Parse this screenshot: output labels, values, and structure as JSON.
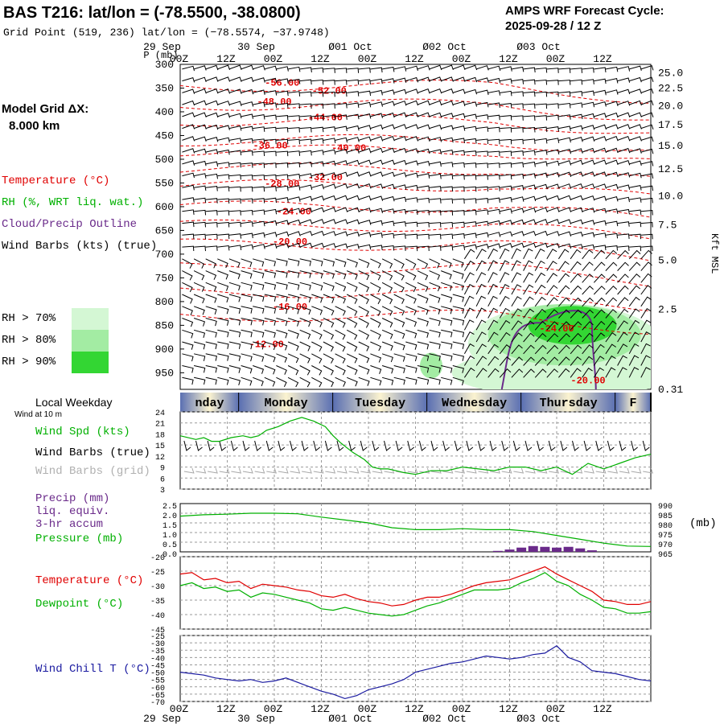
{
  "header": {
    "title": "BAS T216:  lat/lon = (-78.5500, -38.0800)",
    "grid_point": "Grid Point (519, 236) lat/lon = (−78.5574, −37.9748)",
    "cycle_line1": "AMPS WRF Forecast Cycle:",
    "cycle_line2": "2025-09-28 / 12  Z",
    "model_grid_label": "Model Grid ΔX:",
    "model_grid_value": "8.000 km"
  },
  "time_axis": {
    "top_dates": [
      "29 Sep",
      "30 Sep",
      "Ø01 Oct",
      "Ø02 Oct",
      "Ø03 Oct"
    ],
    "bottom_dates": [
      "29 Sep",
      "30 Sep",
      "Ø01 Oct",
      "Ø02 Oct",
      "Ø03 Oct"
    ],
    "hours": [
      "00Z",
      "12Z",
      "00Z",
      "12Z",
      "00Z",
      "12Z",
      "00Z",
      "12Z",
      "00Z",
      "12Z"
    ],
    "p_label": "P (mb)"
  },
  "legend": {
    "temperature": "Temperature (°C)",
    "rh": "RH (%, WRT liq. wat.)",
    "cloud": "Cloud/Precip Outline",
    "wind_barbs": "Wind Barbs (kts) (true)",
    "rh70": "RH > 70%",
    "rh80": "RH > 80%",
    "rh90": "RH > 90%",
    "rh_colors": [
      "#d4f7d4",
      "#a3eca3",
      "#33d633"
    ]
  },
  "weekday": {
    "title": "Local Weekday",
    "days": [
      "nday",
      "Monday",
      "Tuesday",
      "Wednesday",
      "Thursday",
      "F"
    ]
  },
  "colors": {
    "temperature": "#e00000",
    "rh": "#00b000",
    "cloud": "#6a2a8a",
    "wind_chill": "#1a1aa0",
    "wind_grid": "#a8a8a8",
    "pressure": "#00b000"
  },
  "chart_data": [
    {
      "type": "contour",
      "name": "cross-section",
      "yaxis_left": {
        "label": "P (mb)",
        "ticks": [
          300,
          350,
          400,
          450,
          500,
          550,
          600,
          650,
          700,
          750,
          800,
          850,
          900,
          950
        ],
        "range": [
          300,
          985
        ]
      },
      "yaxis_right": {
        "label": "Kft MSL",
        "ticks": [
          "25.0",
          "22.5",
          "20.0",
          "17.5",
          "15.0",
          "12.5",
          "10.0",
          "7.5",
          "5.0",
          "2.5",
          "0.31"
        ],
        "tick_pressures": [
          318,
          350,
          387,
          427,
          471,
          520,
          577,
          638,
          713,
          816,
          985
        ]
      },
      "xaxis": {
        "hours": [
          0,
          120
        ],
        "ticks_hours": [
          12,
          24,
          36,
          48,
          60,
          72,
          84,
          96,
          108,
          120
        ]
      },
      "temperature_labels": [
        {
          "text": "-56.00",
          "hour": 26,
          "p": 345
        },
        {
          "text": "-52.00",
          "hour": 38,
          "p": 362
        },
        {
          "text": "-48.00",
          "hour": 24,
          "p": 385
        },
        {
          "text": "-44.00",
          "hour": 37,
          "p": 418
        },
        {
          "text": "-36.00",
          "hour": 23,
          "p": 477
        },
        {
          "text": "-40.00",
          "hour": 43,
          "p": 482
        },
        {
          "text": "-28.00",
          "hour": 26,
          "p": 558
        },
        {
          "text": "-32.00",
          "hour": 37,
          "p": 544
        },
        {
          "text": "-24.00",
          "hour": 29,
          "p": 616
        },
        {
          "text": "-20.00",
          "hour": 28,
          "p": 680
        },
        {
          "text": "-16.00",
          "hour": 28,
          "p": 817
        },
        {
          "text": "-12.00",
          "hour": 22,
          "p": 896
        },
        {
          "text": "-24.00",
          "hour": 96,
          "p": 863
        },
        {
          "text": "-20.00",
          "hour": 104,
          "p": 972
        }
      ]
    },
    {
      "type": "line",
      "name": "wind-speed",
      "ylabel": "Wind Spd (kts)",
      "ylim": [
        3,
        24
      ],
      "yticks": [
        24,
        21,
        18,
        15,
        12,
        9,
        6,
        3
      ],
      "x": [
        0,
        4,
        6,
        8,
        10,
        13,
        16,
        18,
        20,
        22,
        25,
        28,
        31,
        34,
        37,
        39,
        41,
        44,
        47,
        49,
        51,
        53,
        55,
        57,
        60,
        64,
        68,
        72,
        76,
        80,
        84,
        88,
        92,
        96,
        100,
        104,
        108,
        112,
        116,
        120
      ],
      "values": [
        17.5,
        16.5,
        17,
        16,
        16,
        17,
        17.5,
        17,
        17.5,
        19,
        20,
        21.5,
        22.5,
        21.5,
        20,
        17.5,
        15.5,
        13,
        11,
        9,
        8.5,
        8.5,
        8,
        7.5,
        7,
        8,
        8,
        9,
        8.5,
        8,
        9,
        9,
        8,
        9,
        7,
        10,
        8.5,
        10,
        11.5,
        12.5
      ],
      "labels": [
        "Wind Spd (kts)",
        "Wind Barbs (true)",
        "Wind Barbs (grid)"
      ],
      "wind_label": "Wind at 10 m"
    },
    {
      "type": "line",
      "name": "precip-pressure",
      "labels": [
        "Precip (mm)",
        "liq. equiv.",
        "3-hr accum",
        "Pressure (mb)"
      ],
      "unit_label": "(mb)",
      "yticks_left": [
        "2.5",
        "2.0",
        "1.5",
        "1.0",
        "0.5",
        "0.0"
      ],
      "yticks_right": [
        "990",
        "985",
        "980",
        "975",
        "970",
        "965"
      ],
      "ylim_left": [
        0,
        2.5
      ],
      "ylim_right": [
        965,
        990
      ],
      "pressure": {
        "x": [
          0,
          6,
          12,
          18,
          24,
          30,
          36,
          42,
          48,
          54,
          60,
          66,
          72,
          78,
          84,
          90,
          96,
          102,
          108,
          114,
          120
        ],
        "values": [
          983.5,
          984.2,
          984.5,
          985,
          985,
          984.7,
          983,
          981.5,
          980,
          977.5,
          976.5,
          976.5,
          977,
          976.5,
          976.5,
          975.5,
          973.5,
          971.5,
          969.5,
          968,
          967.8
        ]
      },
      "precip": {
        "x": [
          81,
          84,
          87,
          90,
          93,
          96,
          99,
          102,
          105
        ],
        "values": [
          0.05,
          0.12,
          0.22,
          0.3,
          0.26,
          0.22,
          0.26,
          0.18,
          0.08
        ]
      }
    },
    {
      "type": "line",
      "name": "temperature-dewpoint",
      "labels": [
        "Temperature (°C)",
        "Dewpoint (°C)"
      ],
      "ylim": [
        -45,
        -20
      ],
      "yticks": [
        -20,
        -25,
        -30,
        -35,
        -40,
        -45
      ],
      "x": [
        0,
        3,
        6,
        9,
        12,
        15,
        18,
        21,
        24,
        27,
        30,
        33,
        36,
        39,
        42,
        45,
        48,
        51,
        54,
        57,
        60,
        63,
        66,
        69,
        72,
        75,
        78,
        81,
        84,
        87,
        90,
        93,
        96,
        99,
        102,
        105,
        108,
        111,
        114,
        117,
        120
      ],
      "series": [
        {
          "name": "Temperature",
          "values": [
            -26,
            -25.5,
            -28,
            -27.5,
            -29,
            -28.5,
            -31,
            -29.5,
            -30,
            -30.5,
            -31.5,
            -32,
            -33.5,
            -34,
            -33,
            -34.5,
            -35.5,
            -36,
            -37,
            -36.5,
            -35,
            -34,
            -34,
            -33,
            -31.5,
            -30,
            -29,
            -28.5,
            -28,
            -26.5,
            -25,
            -23.5,
            -26,
            -28,
            -30,
            -32,
            -35,
            -35.5,
            -36.5,
            -36.5,
            -35.5
          ]
        },
        {
          "name": "Dewpoint",
          "values": [
            -30,
            -29,
            -31,
            -30.5,
            -32,
            -31.5,
            -34,
            -32.5,
            -33,
            -34,
            -35,
            -36,
            -38,
            -38.5,
            -37.5,
            -38.5,
            -39.5,
            -40,
            -40.5,
            -40,
            -38.5,
            -37,
            -36,
            -34.5,
            -33,
            -31.5,
            -31.5,
            -31.5,
            -31,
            -29,
            -27.5,
            -25.5,
            -28.5,
            -30,
            -33,
            -35,
            -37.5,
            -38,
            -39.5,
            -39.5,
            -39
          ]
        }
      ]
    },
    {
      "type": "line",
      "name": "wind-chill",
      "ylabel": "Wind Chill T (°C)",
      "ylim": [
        -70,
        -25
      ],
      "yticks": [
        -25,
        -30,
        -35,
        -40,
        -45,
        -50,
        -55,
        -60,
        -65,
        -70
      ],
      "x": [
        0,
        3,
        6,
        9,
        12,
        15,
        18,
        21,
        24,
        27,
        30,
        33,
        36,
        39,
        42,
        45,
        48,
        51,
        54,
        57,
        60,
        63,
        66,
        69,
        72,
        75,
        78,
        81,
        84,
        87,
        90,
        93,
        96,
        99,
        102,
        105,
        108,
        111,
        114,
        117,
        120
      ],
      "values": [
        -50,
        -51,
        -52,
        -54,
        -55,
        -56,
        -55,
        -57,
        -56,
        -54,
        -57,
        -60,
        -63,
        -65,
        -68,
        -66,
        -62,
        -60,
        -58,
        -55,
        -50,
        -48,
        -46,
        -44,
        -43,
        -41,
        -39,
        -40,
        -41,
        -40,
        -38,
        -37,
        -32,
        -40,
        -43,
        -49,
        -50,
        -51,
        -53,
        -55,
        -56
      ]
    }
  ]
}
